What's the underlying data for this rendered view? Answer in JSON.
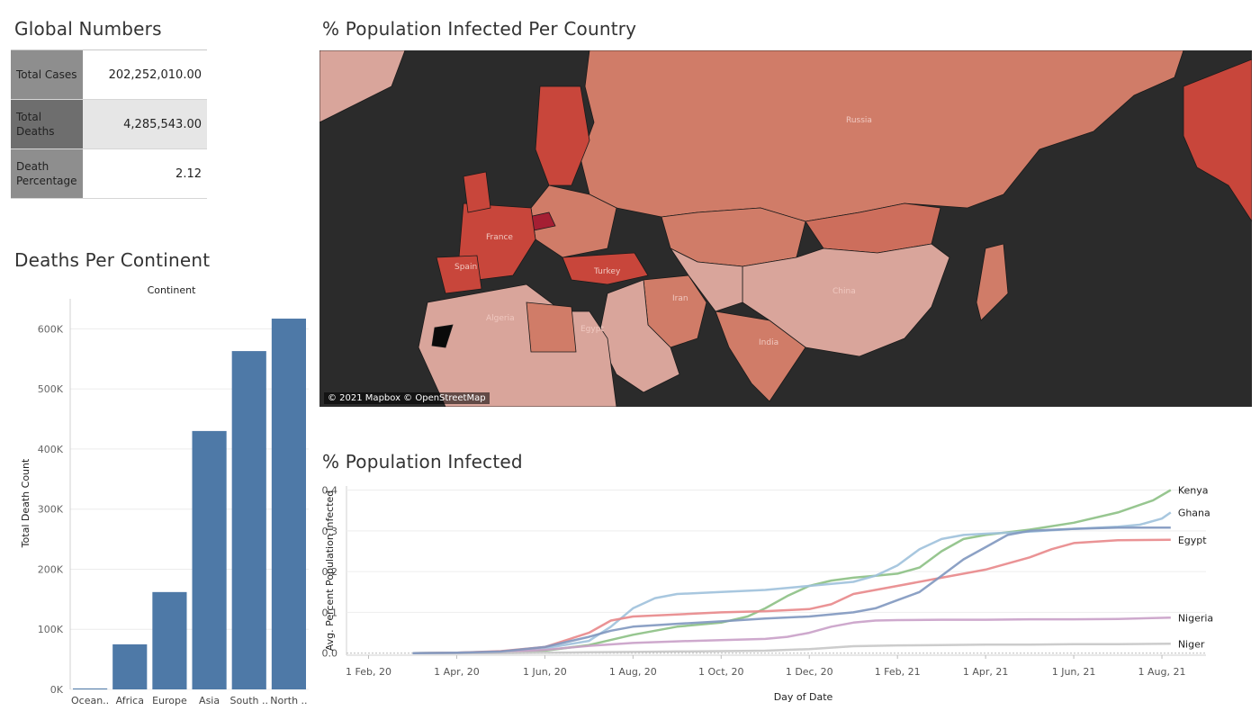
{
  "global_numbers": {
    "title": "Global Numbers",
    "rows": [
      {
        "label": "Total Cases",
        "value": "202,252,010.00"
      },
      {
        "label": "Total Deaths",
        "value": "4,285,543.00"
      },
      {
        "label": "Death Percentage",
        "value": "2.12"
      }
    ]
  },
  "map_panel": {
    "title": "% Population Infected Per Country",
    "attribution": "© 2021 Mapbox © OpenStreetMap",
    "country_labels": [
      "Russia",
      "China",
      "India",
      "Iran",
      "Egypt",
      "Algeria",
      "France",
      "Spain",
      "Turkey"
    ],
    "colors": {
      "ocean": "#2b2b2b",
      "low": "#d9a59b",
      "mid": "#d07c68",
      "high": "#c8463b",
      "max": "#a51f33"
    }
  },
  "continent_panel": {
    "title": "Deaths Per Continent",
    "header": "Continent"
  },
  "line_panel": {
    "title": "% Population Infected"
  },
  "chart_data": [
    {
      "type": "bar",
      "title": "Deaths Per Continent",
      "header": "Continent",
      "categories": [
        "Ocean..",
        "Africa",
        "Europe",
        "Asia",
        "South ..",
        "North .."
      ],
      "values": [
        1500,
        75000,
        162000,
        430000,
        563000,
        617000
      ],
      "ylabel": "Total Death Count",
      "yticks": [
        "0K",
        "100K",
        "200K",
        "300K",
        "400K",
        "500K",
        "600K"
      ],
      "ylim": [
        0,
        650000
      ],
      "color": "#4e79a7",
      "grid": true
    },
    {
      "type": "line",
      "title": "% Population Infected",
      "xlabel": "Day of Date",
      "ylabel": "Avg. Percent Population Infected",
      "xticks": [
        "1 Feb, 20",
        "1 Apr, 20",
        "1 Jun, 20",
        "1 Aug, 20",
        "1 Oct, 20",
        "1 Dec, 20",
        "1 Feb, 21",
        "1 Apr, 21",
        "1 Jun, 21",
        "1 Aug, 21"
      ],
      "yticks": [
        "0.0",
        "0.1",
        "0.2",
        "0.3",
        "0.4"
      ],
      "ylim": [
        -0.005,
        0.41
      ],
      "x_months_range": [
        -0.5,
        19.0
      ],
      "grid": true,
      "series": [
        {
          "name": "Kenya",
          "color": "#8cc084",
          "points": [
            [
              1,
              0
            ],
            [
              2,
              0.001
            ],
            [
              3,
              0.002
            ],
            [
              4,
              0.006
            ],
            [
              5,
              0.02
            ],
            [
              6,
              0.045
            ],
            [
              7,
              0.065
            ],
            [
              8,
              0.075
            ],
            [
              8.6,
              0.09
            ],
            [
              9,
              0.11
            ],
            [
              9.5,
              0.14
            ],
            [
              10,
              0.165
            ],
            [
              10.5,
              0.178
            ],
            [
              11,
              0.185
            ],
            [
              11.5,
              0.19
            ],
            [
              12,
              0.195
            ],
            [
              12.5,
              0.21
            ],
            [
              13,
              0.25
            ],
            [
              13.5,
              0.28
            ],
            [
              14,
              0.29
            ],
            [
              15,
              0.303
            ],
            [
              16,
              0.32
            ],
            [
              17,
              0.345
            ],
            [
              17.8,
              0.375
            ],
            [
              18.2,
              0.4
            ]
          ]
        },
        {
          "name": "Ghana",
          "color": "#9ec1dc",
          "points": [
            [
              1,
              0
            ],
            [
              2,
              0.001
            ],
            [
              3,
              0.003
            ],
            [
              4,
              0.012
            ],
            [
              5,
              0.03
            ],
            [
              5.5,
              0.065
            ],
            [
              6,
              0.11
            ],
            [
              6.5,
              0.135
            ],
            [
              7,
              0.145
            ],
            [
              8,
              0.15
            ],
            [
              9,
              0.155
            ],
            [
              10,
              0.165
            ],
            [
              11,
              0.175
            ],
            [
              11.5,
              0.19
            ],
            [
              12,
              0.215
            ],
            [
              12.5,
              0.255
            ],
            [
              13,
              0.28
            ],
            [
              13.5,
              0.29
            ],
            [
              14,
              0.293
            ],
            [
              15,
              0.298
            ],
            [
              16,
              0.305
            ],
            [
              17,
              0.31
            ],
            [
              17.5,
              0.315
            ],
            [
              18,
              0.33
            ],
            [
              18.2,
              0.345
            ]
          ]
        },
        {
          "name": "Egypt",
          "color": "#e8878a",
          "points": [
            [
              1,
              0
            ],
            [
              2,
              0.001
            ],
            [
              3,
              0.005
            ],
            [
              4,
              0.015
            ],
            [
              5,
              0.05
            ],
            [
              5.5,
              0.08
            ],
            [
              6,
              0.09
            ],
            [
              7,
              0.095
            ],
            [
              8,
              0.1
            ],
            [
              9,
              0.103
            ],
            [
              10,
              0.108
            ],
            [
              10.5,
              0.12
            ],
            [
              11,
              0.145
            ],
            [
              12,
              0.165
            ],
            [
              13,
              0.185
            ],
            [
              14,
              0.205
            ],
            [
              15,
              0.235
            ],
            [
              15.5,
              0.255
            ],
            [
              16,
              0.27
            ],
            [
              17,
              0.277
            ],
            [
              18.2,
              0.278
            ]
          ]
        },
        {
          "name": "Nigeria",
          "color": "#c9a0c8",
          "points": [
            [
              1,
              0
            ],
            [
              2,
              0
            ],
            [
              3,
              0.002
            ],
            [
              4,
              0.008
            ],
            [
              5,
              0.018
            ],
            [
              6,
              0.025
            ],
            [
              7,
              0.029
            ],
            [
              8,
              0.032
            ],
            [
              9,
              0.035
            ],
            [
              9.5,
              0.04
            ],
            [
              10,
              0.05
            ],
            [
              10.5,
              0.065
            ],
            [
              11,
              0.075
            ],
            [
              11.5,
              0.08
            ],
            [
              12,
              0.081
            ],
            [
              13,
              0.082
            ],
            [
              14,
              0.082
            ],
            [
              15,
              0.083
            ],
            [
              16,
              0.083
            ],
            [
              17,
              0.084
            ],
            [
              18.2,
              0.087
            ]
          ]
        },
        {
          "name": "Niger",
          "color": "#c7c7c7",
          "points": [
            [
              1,
              0
            ],
            [
              2,
              0
            ],
            [
              3,
              0
            ],
            [
              4,
              0.001
            ],
            [
              5,
              0.002
            ],
            [
              6,
              0.003
            ],
            [
              7,
              0.004
            ],
            [
              8,
              0.005
            ],
            [
              9,
              0.006
            ],
            [
              10,
              0.01
            ],
            [
              11,
              0.017
            ],
            [
              12,
              0.019
            ],
            [
              13,
              0.02
            ],
            [
              14,
              0.021
            ],
            [
              15,
              0.021
            ],
            [
              16,
              0.022
            ],
            [
              17,
              0.022
            ],
            [
              18.2,
              0.023
            ]
          ]
        },
        {
          "name": "",
          "color": "#7f97bf",
          "points": [
            [
              1,
              0
            ],
            [
              2,
              0.001
            ],
            [
              3,
              0.004
            ],
            [
              4,
              0.015
            ],
            [
              5,
              0.04
            ],
            [
              5.5,
              0.055
            ],
            [
              6,
              0.065
            ],
            [
              7,
              0.072
            ],
            [
              8,
              0.078
            ],
            [
              9,
              0.085
            ],
            [
              10,
              0.09
            ],
            [
              11,
              0.1
            ],
            [
              11.5,
              0.11
            ],
            [
              12,
              0.13
            ],
            [
              12.5,
              0.15
            ],
            [
              13,
              0.19
            ],
            [
              13.5,
              0.23
            ],
            [
              14,
              0.26
            ],
            [
              14.5,
              0.29
            ],
            [
              15,
              0.3
            ],
            [
              16,
              0.305
            ],
            [
              17,
              0.308
            ],
            [
              18.2,
              0.308
            ]
          ]
        }
      ]
    }
  ]
}
